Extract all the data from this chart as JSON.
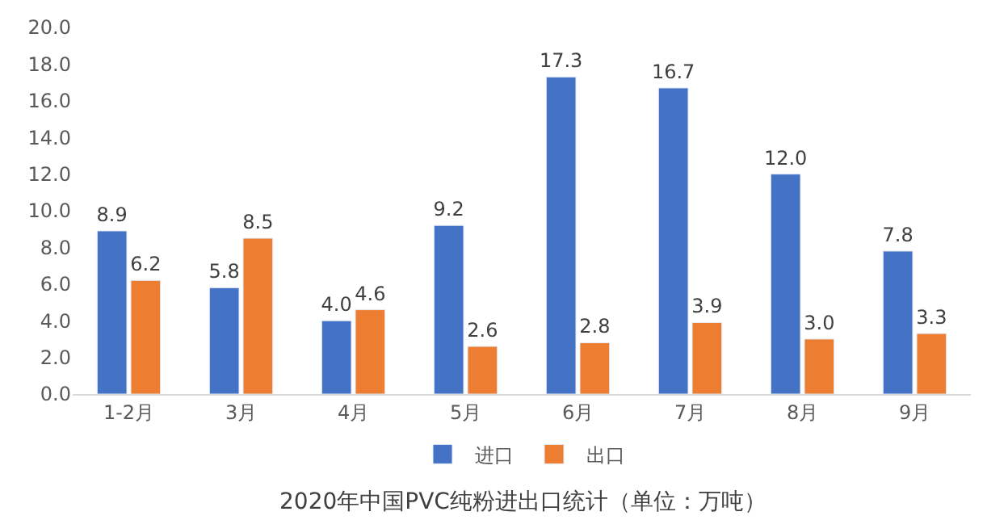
{
  "chart_data": {
    "type": "bar",
    "title": "2020年中国PVC纯粉进出口统计（单位：万吨）",
    "categories": [
      "1-2月",
      "3月",
      "4月",
      "5月",
      "6月",
      "7月",
      "8月",
      "9月"
    ],
    "series": [
      {
        "name": "进口",
        "color": "#4472c4",
        "values": [
          8.9,
          5.8,
          4.0,
          9.2,
          17.3,
          16.7,
          12.0,
          7.8
        ],
        "value_labels": [
          "8.9",
          "5.8",
          "4.0",
          "9.2",
          "17.3",
          "16.7",
          "12.0",
          "7.8"
        ]
      },
      {
        "name": "出口",
        "color": "#ed7d31",
        "values": [
          6.2,
          8.5,
          4.6,
          2.6,
          2.8,
          3.9,
          3.0,
          3.3
        ],
        "value_labels": [
          "6.2",
          "8.5",
          "4.6",
          "2.6",
          "2.8",
          "3.9",
          "3.0",
          "3.3"
        ]
      }
    ],
    "ylim": [
      0,
      20
    ],
    "yticks": [
      {
        "value": 0,
        "label": "0.0"
      },
      {
        "value": 2,
        "label": "2.0"
      },
      {
        "value": 4,
        "label": "4.0"
      },
      {
        "value": 6,
        "label": "6.0"
      },
      {
        "value": 8,
        "label": "8.0"
      },
      {
        "value": 10,
        "label": "10.0"
      },
      {
        "value": 12,
        "label": "12.0"
      },
      {
        "value": 14,
        "label": "14.0"
      },
      {
        "value": 16,
        "label": "16.0"
      },
      {
        "value": 18,
        "label": "18.0"
      },
      {
        "value": 20,
        "label": "20.0"
      }
    ],
    "grid": false,
    "legend": "bottom"
  }
}
